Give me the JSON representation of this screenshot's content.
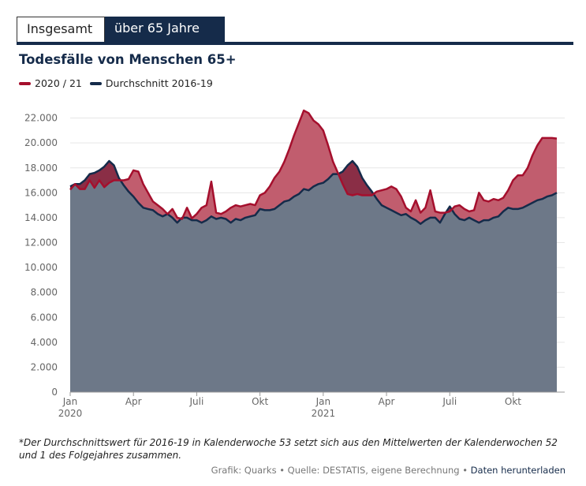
{
  "tabs": [
    {
      "label": "Insgesamt",
      "active": false
    },
    {
      "label": "über 65 Jahre",
      "active": true
    }
  ],
  "chart_data": {
    "type": "area",
    "title": "Todesfälle von Menschen 65+",
    "ylim": [
      0,
      24000
    ],
    "ytick_values": [
      0,
      2000,
      4000,
      6000,
      8000,
      10000,
      12000,
      14000,
      16000,
      18000,
      20000,
      22000
    ],
    "ytick_labels": [
      "0",
      "2.000",
      "4.000",
      "6.000",
      "8.000",
      "10.000",
      "12.000",
      "14.000",
      "16.000",
      "18.000",
      "20.000",
      "22.000"
    ],
    "xtick_labels": [
      {
        "line1": "Jan",
        "line2": "2020",
        "week": 1
      },
      {
        "line1": "Apr",
        "line2": "",
        "week": 14
      },
      {
        "line1": "Juli",
        "line2": "",
        "week": 27
      },
      {
        "line1": "Okt",
        "line2": "",
        "week": 40
      },
      {
        "line1": "Jan",
        "line2": "2021",
        "week": 53
      },
      {
        "line1": "Apr",
        "line2": "",
        "week": 66
      },
      {
        "line1": "Juli",
        "line2": "",
        "week": 79
      },
      {
        "line1": "Okt",
        "line2": "",
        "week": 92
      }
    ],
    "x_weeks": [
      1,
      2,
      3,
      4,
      5,
      6,
      7,
      8,
      9,
      10,
      11,
      12,
      13,
      14,
      15,
      16,
      17,
      18,
      19,
      20,
      21,
      22,
      23,
      24,
      25,
      26,
      27,
      28,
      29,
      30,
      31,
      32,
      33,
      34,
      35,
      36,
      37,
      38,
      39,
      40,
      41,
      42,
      43,
      44,
      45,
      46,
      47,
      48,
      49,
      50,
      51,
      52,
      53,
      54,
      55,
      56,
      57,
      58,
      59,
      60,
      61,
      62,
      63,
      64,
      65,
      66,
      67,
      68,
      69,
      70,
      71,
      72,
      73,
      74,
      75,
      76,
      77,
      78,
      79,
      80,
      81,
      82,
      83,
      84,
      85,
      86,
      87,
      88,
      89,
      90,
      91,
      92,
      93,
      94,
      95,
      96,
      97,
      98,
      99,
      100,
      101
    ],
    "series": [
      {
        "name": "2020 / 21",
        "color": "#a50f2d",
        "values": [
          16250,
          16700,
          16300,
          16300,
          17000,
          16400,
          17000,
          16450,
          16800,
          17000,
          17000,
          17000,
          17100,
          17800,
          17700,
          16700,
          16000,
          15300,
          15000,
          14700,
          14300,
          14700,
          14000,
          13900,
          14800,
          13950,
          14300,
          14800,
          15000,
          16900,
          14400,
          14300,
          14500,
          14800,
          15000,
          14900,
          15000,
          15100,
          15000,
          15800,
          16000,
          16500,
          17200,
          17700,
          18500,
          19500,
          20600,
          21600,
          22600,
          22400,
          21800,
          21500,
          21000,
          19800,
          18500,
          17600,
          16700,
          15900,
          15800,
          15900,
          15800,
          15800,
          15800,
          16100,
          16200,
          16300,
          16500,
          16300,
          15700,
          14800,
          14500,
          15400,
          14400,
          14800,
          16200,
          14500,
          14400,
          14400,
          14500,
          14900,
          15000,
          14700,
          14500,
          14600,
          16000,
          15400,
          15300,
          15500,
          15400,
          15600,
          16200,
          17000,
          17400,
          17400,
          18000,
          19000,
          19800,
          20400,
          20400,
          20400,
          20350
        ]
      },
      {
        "name": "Durchschnitt 2016-19",
        "color": "#152b4a",
        "values": [
          16500,
          16700,
          16700,
          17000,
          17500,
          17600,
          17800,
          18100,
          18550,
          18200,
          17200,
          16600,
          16100,
          15700,
          15200,
          14800,
          14700,
          14600,
          14300,
          14100,
          14300,
          14000,
          13600,
          14000,
          14000,
          13800,
          13800,
          13600,
          13800,
          14100,
          13900,
          14000,
          13900,
          13600,
          13900,
          13800,
          14000,
          14100,
          14200,
          14700,
          14600,
          14600,
          14700,
          15000,
          15300,
          15400,
          15700,
          15900,
          16300,
          16200,
          16500,
          16700,
          16800,
          17100,
          17500,
          17500,
          17700,
          18200,
          18550,
          18100,
          17200,
          16600,
          16100,
          15500,
          15000,
          14800,
          14600,
          14400,
          14200,
          14300,
          14000,
          13800,
          13500,
          13800,
          14000,
          14000,
          13600,
          14300,
          14900,
          14300,
          13900,
          13800,
          14000,
          13800,
          13600,
          13800,
          13800,
          14000,
          14100,
          14500,
          14800,
          14700,
          14700,
          14800,
          15000,
          15200,
          15400,
          15500,
          15700,
          15800,
          16000
        ]
      }
    ],
    "colors": {
      "grid": "#e6e6e6",
      "axis": "#999999",
      "base_fill": "#6d7888",
      "excess_fill": "#c15d6e",
      "below_fill": "#8a2e46"
    }
  },
  "footnote": "*Der Durchschnittswert für 2016-19 in Kalenderwoche 53 setzt sich aus den Mittelwerten der Kalenderwochen 52 und 1 des Folgejahres zusammen.",
  "credits": {
    "text": "Grafik: Quarks • Quelle: DESTATIS, eigene Berechnung •",
    "link": "Daten herunterladen"
  }
}
